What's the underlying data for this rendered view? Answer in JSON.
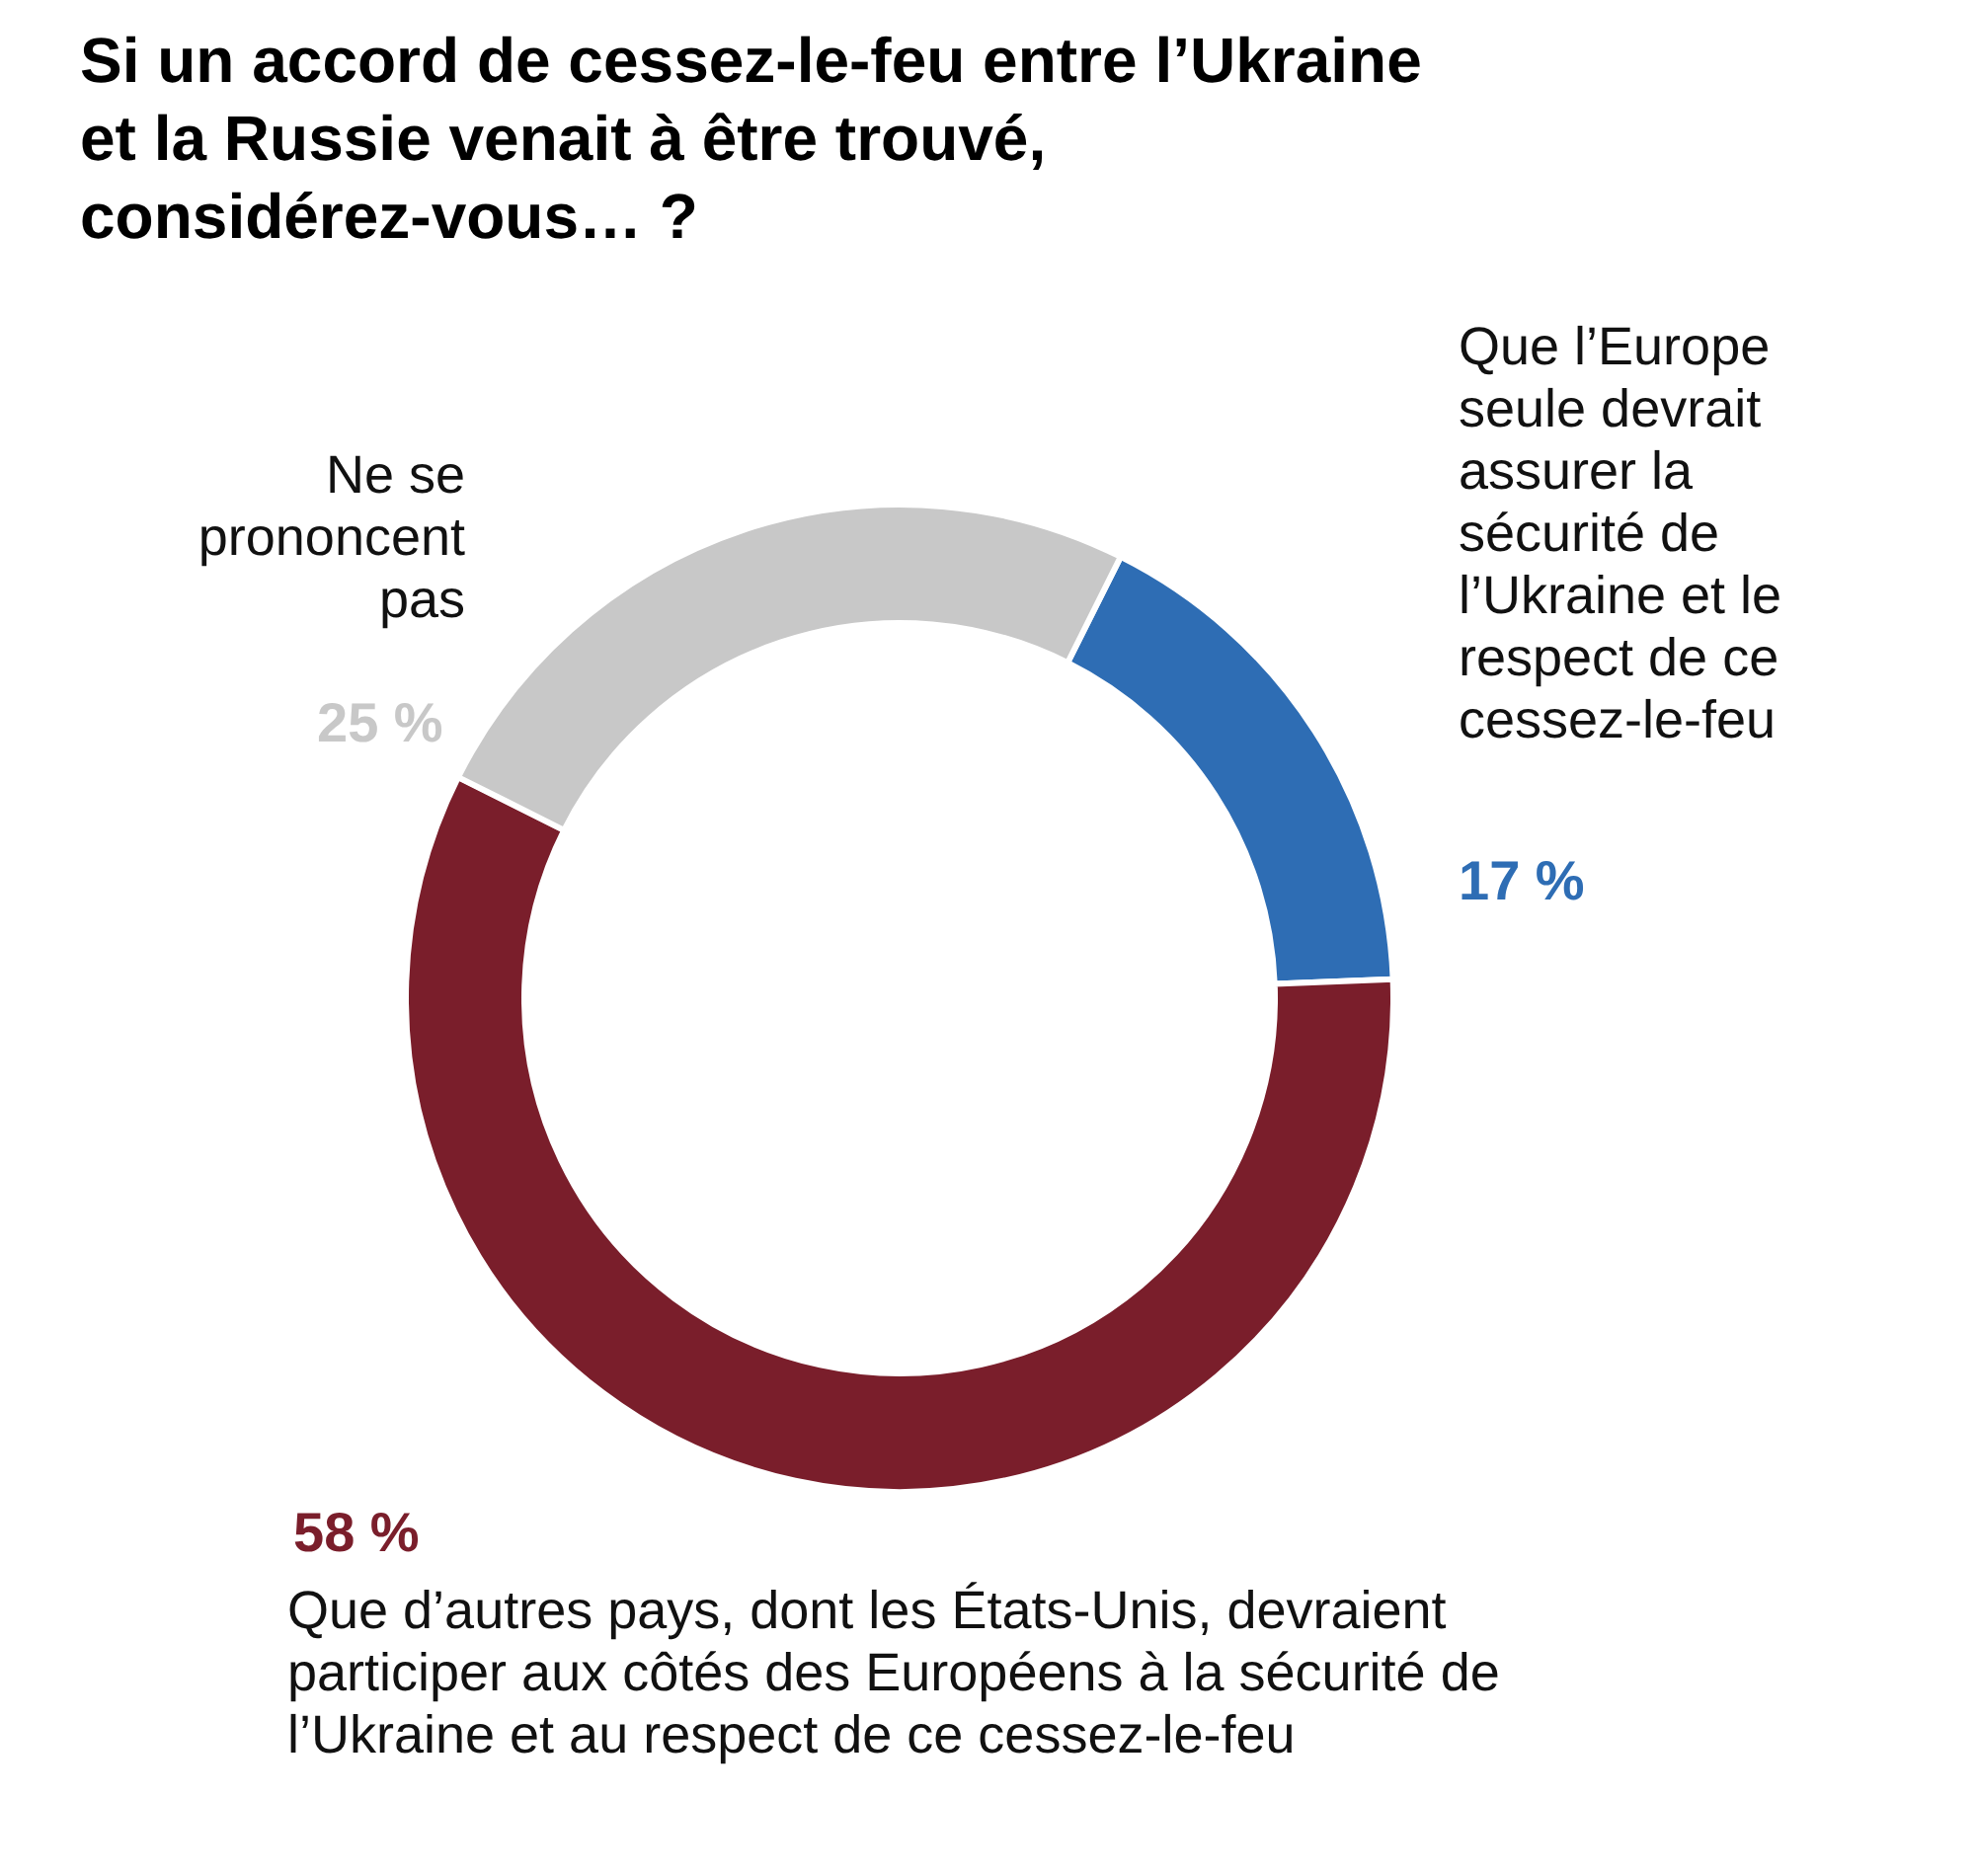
{
  "chart_data": {
    "type": "donut",
    "title": "Si un accord de cessez-le-feu entre l’Ukraine et la Russie venait à être trouvé, considérez-vous… ?",
    "categories": [
      "Que l’Europe seule devrait assurer la sécurité de l’Ukraine et le respect de ce cessez-le-feu",
      "Que d’autres pays, dont les États-Unis, devraient participer aux côtés des Européens à la sécurité de l’Ukraine et au respect de ce cessez-le-feu",
      "Ne se prononcent pas"
    ],
    "values": [
      17,
      58,
      25
    ],
    "colors": [
      "#2e6db4",
      "#7a1e2b",
      "#c8c8c8"
    ],
    "value_labels": [
      "17 %",
      "58 %",
      "25 %"
    ]
  }
}
